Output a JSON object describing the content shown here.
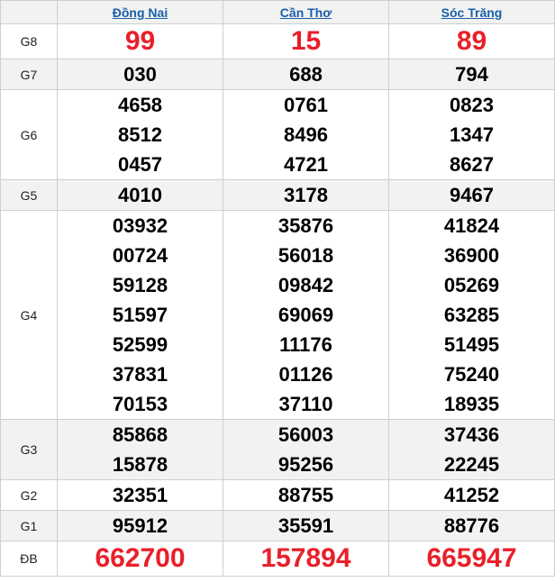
{
  "colors": {
    "header_link": "#1a5fa8",
    "highlight": "#e8202a",
    "stripe": "#f2f2f2"
  },
  "provinces": [
    "Đồng Nai",
    "Cần Thơ",
    "Sóc Trăng"
  ],
  "prizes": [
    {
      "label": "G8",
      "highlight": true,
      "results": [
        [
          "99"
        ],
        [
          "15"
        ],
        [
          "89"
        ]
      ]
    },
    {
      "label": "G7",
      "results": [
        [
          "030"
        ],
        [
          "688"
        ],
        [
          "794"
        ]
      ]
    },
    {
      "label": "G6",
      "results": [
        [
          "4658",
          "8512",
          "0457"
        ],
        [
          "0761",
          "8496",
          "4721"
        ],
        [
          "0823",
          "1347",
          "8627"
        ]
      ]
    },
    {
      "label": "G5",
      "results": [
        [
          "4010"
        ],
        [
          "3178"
        ],
        [
          "9467"
        ]
      ]
    },
    {
      "label": "G4",
      "results": [
        [
          "03932",
          "00724",
          "59128",
          "51597",
          "52599",
          "37831",
          "70153"
        ],
        [
          "35876",
          "56018",
          "09842",
          "69069",
          "11176",
          "01126",
          "37110"
        ],
        [
          "41824",
          "36900",
          "05269",
          "63285",
          "51495",
          "75240",
          "18935"
        ]
      ]
    },
    {
      "label": "G3",
      "results": [
        [
          "85868",
          "15878"
        ],
        [
          "56003",
          "95256"
        ],
        [
          "37436",
          "22245"
        ]
      ]
    },
    {
      "label": "G2",
      "results": [
        [
          "32351"
        ],
        [
          "88755"
        ],
        [
          "41252"
        ]
      ]
    },
    {
      "label": "G1",
      "results": [
        [
          "95912"
        ],
        [
          "35591"
        ],
        [
          "88776"
        ]
      ]
    },
    {
      "label": "ĐB",
      "highlight": true,
      "results": [
        [
          "662700"
        ],
        [
          "157894"
        ],
        [
          "665947"
        ]
      ]
    }
  ]
}
